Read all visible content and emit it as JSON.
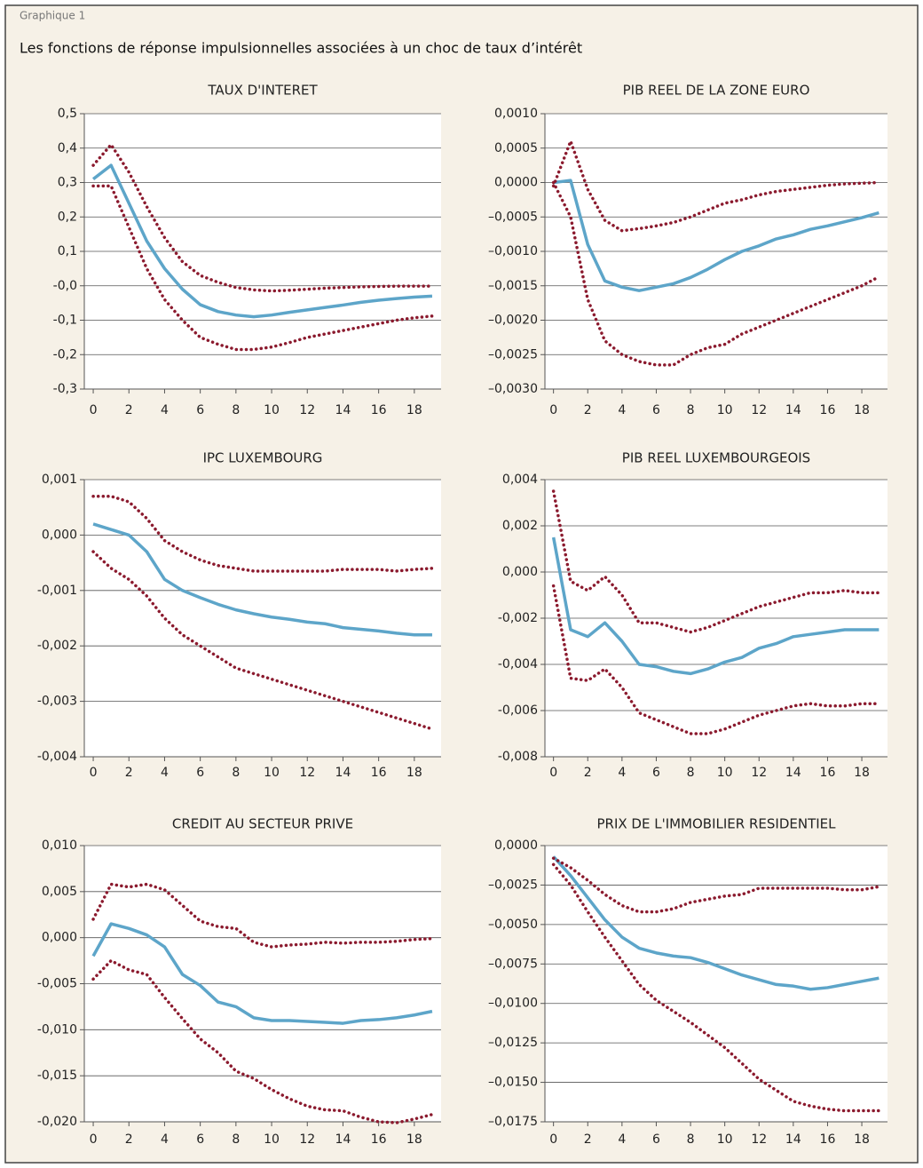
{
  "header": {
    "label": "Graphique 1",
    "title": "Les fonctions de réponse impulsionnelles associées à un choc de taux d’intérêt"
  },
  "chart_data": [
    {
      "type": "line",
      "title": "TAUX D'INTERET",
      "x": [
        0,
        1,
        2,
        3,
        4,
        5,
        6,
        7,
        8,
        9,
        10,
        11,
        12,
        13,
        14,
        15,
        16,
        17,
        18,
        19
      ],
      "xlim": [
        -0.5,
        19.5
      ],
      "xticks": [
        0,
        2,
        4,
        6,
        8,
        10,
        12,
        14,
        16,
        18
      ],
      "ylim": [
        -0.3,
        0.5
      ],
      "yticks": [
        {
          "value": 0.5,
          "label": "0,5"
        },
        {
          "value": 0.4,
          "label": "0,4"
        },
        {
          "value": 0.3,
          "label": "0,3"
        },
        {
          "value": 0.2,
          "label": "0,2"
        },
        {
          "value": 0.1,
          "label": "0,1"
        },
        {
          "value": 0,
          "label": "-0,0"
        },
        {
          "value": -0.1,
          "label": "-0,1"
        },
        {
          "value": -0.2,
          "label": "-0,2"
        },
        {
          "value": -0.3,
          "label": "-0,3"
        }
      ],
      "grid": true,
      "series": [
        {
          "color": "#5da5c9",
          "style": "solid",
          "values": [
            0.31,
            0.35,
            0.24,
            0.13,
            0.05,
            -0.01,
            -0.055,
            -0.075,
            -0.085,
            -0.09,
            -0.085,
            -0.077,
            -0.07,
            -0.063,
            -0.056,
            -0.048,
            -0.042,
            -0.037,
            -0.033,
            -0.03
          ]
        },
        {
          "color": "#8b1a2e",
          "style": "dotted",
          "values": [
            0.35,
            0.41,
            0.33,
            0.23,
            0.14,
            0.07,
            0.03,
            0.01,
            -0.005,
            -0.012,
            -0.015,
            -0.013,
            -0.01,
            -0.007,
            -0.005,
            -0.003,
            -0.002,
            -0.001,
            -0.001,
            -0.001
          ]
        },
        {
          "color": "#8b1a2e",
          "style": "dotted",
          "values": [
            0.29,
            0.29,
            0.17,
            0.05,
            -0.04,
            -0.1,
            -0.15,
            -0.17,
            -0.185,
            -0.185,
            -0.178,
            -0.165,
            -0.15,
            -0.14,
            -0.13,
            -0.12,
            -0.11,
            -0.1,
            -0.093,
            -0.088
          ]
        }
      ]
    },
    {
      "type": "line",
      "title": "PIB REEL DE LA ZONE EURO",
      "x": [
        0,
        1,
        2,
        3,
        4,
        5,
        6,
        7,
        8,
        9,
        10,
        11,
        12,
        13,
        14,
        15,
        16,
        17,
        18,
        19
      ],
      "xlim": [
        -0.5,
        19.5
      ],
      "xticks": [
        0,
        2,
        4,
        6,
        8,
        10,
        12,
        14,
        16,
        18
      ],
      "ylim": [
        -0.003,
        0.001
      ],
      "yticks": [
        {
          "value": 0.001,
          "label": "0,0010"
        },
        {
          "value": 0.0005,
          "label": "0,0005"
        },
        {
          "value": 0,
          "label": "0,0000"
        },
        {
          "value": -0.0005,
          "label": "–0,0005"
        },
        {
          "value": -0.001,
          "label": "–0,0010"
        },
        {
          "value": -0.0015,
          "label": "–0,0015"
        },
        {
          "value": -0.002,
          "label": "–0,0020"
        },
        {
          "value": -0.0025,
          "label": "–0,0025"
        },
        {
          "value": -0.003,
          "label": "–0,0030"
        }
      ],
      "grid": true,
      "series": [
        {
          "color": "#5da5c9",
          "style": "solid",
          "values": [
            0,
            3e-05,
            -0.0009,
            -0.00143,
            -0.00152,
            -0.00157,
            -0.00152,
            -0.00147,
            -0.00138,
            -0.00126,
            -0.00112,
            -0.001,
            -0.00092,
            -0.00082,
            -0.00076,
            -0.00068,
            -0.00063,
            -0.00057,
            -0.00051,
            -0.00044
          ]
        },
        {
          "color": "#8b1a2e",
          "style": "dotted",
          "values": [
            -5e-05,
            0.0006,
            -0.0001,
            -0.00055,
            -0.0007,
            -0.00067,
            -0.00063,
            -0.00058,
            -0.0005,
            -0.0004,
            -0.0003,
            -0.00025,
            -0.00018,
            -0.00013,
            -0.0001,
            -7e-05,
            -4e-05,
            -2e-05,
            -1e-05,
            0
          ]
        },
        {
          "color": "#8b1a2e",
          "style": "dotted",
          "values": [
            0,
            -0.0005,
            -0.0017,
            -0.0023,
            -0.0025,
            -0.0026,
            -0.00265,
            -0.00265,
            -0.0025,
            -0.0024,
            -0.00235,
            -0.0022,
            -0.0021,
            -0.002,
            -0.0019,
            -0.0018,
            -0.0017,
            -0.0016,
            -0.0015,
            -0.00137
          ]
        }
      ]
    },
    {
      "type": "line",
      "title": "IPC LUXEMBOURG",
      "x": [
        0,
        1,
        2,
        3,
        4,
        5,
        6,
        7,
        8,
        9,
        10,
        11,
        12,
        13,
        14,
        15,
        16,
        17,
        18,
        19
      ],
      "xlim": [
        -0.5,
        19.5
      ],
      "xticks": [
        0,
        2,
        4,
        6,
        8,
        10,
        12,
        14,
        16,
        18
      ],
      "ylim": [
        -0.004,
        0.001
      ],
      "yticks": [
        {
          "value": 0.001,
          "label": "0,001"
        },
        {
          "value": 0,
          "label": "0,000"
        },
        {
          "value": -0.001,
          "label": "-0,001"
        },
        {
          "value": -0.002,
          "label": "-0,002"
        },
        {
          "value": -0.003,
          "label": "-0,003"
        },
        {
          "value": -0.004,
          "label": "-0,004"
        }
      ],
      "grid": true,
      "series": [
        {
          "color": "#5da5c9",
          "style": "solid",
          "values": [
            0.0002,
            0.0001,
            0,
            -0.0003,
            -0.0008,
            -0.001,
            -0.00113,
            -0.00125,
            -0.00135,
            -0.00142,
            -0.00148,
            -0.00152,
            -0.00157,
            -0.0016,
            -0.00167,
            -0.0017,
            -0.00173,
            -0.00177,
            -0.0018,
            -0.0018
          ]
        },
        {
          "color": "#8b1a2e",
          "style": "dotted",
          "values": [
            0.0007,
            0.0007,
            0.0006,
            0.0003,
            -0.0001,
            -0.0003,
            -0.00045,
            -0.00055,
            -0.0006,
            -0.00065,
            -0.00065,
            -0.00065,
            -0.00065,
            -0.00065,
            -0.00062,
            -0.00062,
            -0.00062,
            -0.00065,
            -0.00062,
            -0.0006
          ]
        },
        {
          "color": "#8b1a2e",
          "style": "dotted",
          "values": [
            -0.0003,
            -0.0006,
            -0.0008,
            -0.0011,
            -0.0015,
            -0.0018,
            -0.002,
            -0.0022,
            -0.0024,
            -0.0025,
            -0.0026,
            -0.0027,
            -0.0028,
            -0.0029,
            -0.003,
            -0.0031,
            -0.0032,
            -0.0033,
            -0.0034,
            -0.0035
          ]
        }
      ]
    },
    {
      "type": "line",
      "title": "PIB REEL LUXEMBOURGEOIS",
      "x": [
        0,
        1,
        2,
        3,
        4,
        5,
        6,
        7,
        8,
        9,
        10,
        11,
        12,
        13,
        14,
        15,
        16,
        17,
        18,
        19
      ],
      "xlim": [
        -0.5,
        19.5
      ],
      "xticks": [
        0,
        2,
        4,
        6,
        8,
        10,
        12,
        14,
        16,
        18
      ],
      "ylim": [
        -0.008,
        0.004
      ],
      "yticks": [
        {
          "value": 0.004,
          "label": "0,004"
        },
        {
          "value": 0.002,
          "label": "0,002"
        },
        {
          "value": 0,
          "label": "0,000"
        },
        {
          "value": -0.002,
          "label": "-0,002"
        },
        {
          "value": -0.004,
          "label": "-0,004"
        },
        {
          "value": -0.006,
          "label": "-0,006"
        },
        {
          "value": -0.008,
          "label": "-0,008"
        }
      ],
      "grid": true,
      "series": [
        {
          "color": "#5da5c9",
          "style": "solid",
          "values": [
            0.0015,
            -0.0025,
            -0.0028,
            -0.0022,
            -0.003,
            -0.004,
            -0.0041,
            -0.0043,
            -0.0044,
            -0.0042,
            -0.0039,
            -0.0037,
            -0.0033,
            -0.0031,
            -0.0028,
            -0.0027,
            -0.0026,
            -0.0025,
            -0.0025,
            -0.0025
          ]
        },
        {
          "color": "#8b1a2e",
          "style": "dotted",
          "values": [
            0.0035,
            -0.0004,
            -0.0008,
            -0.0002,
            -0.001,
            -0.0022,
            -0.0022,
            -0.0024,
            -0.0026,
            -0.0024,
            -0.0021,
            -0.0018,
            -0.0015,
            -0.0013,
            -0.0011,
            -0.0009,
            -0.0009,
            -0.0008,
            -0.0009,
            -0.0009
          ]
        },
        {
          "color": "#8b1a2e",
          "style": "dotted",
          "values": [
            -0.0006,
            -0.0046,
            -0.0047,
            -0.0042,
            -0.005,
            -0.0061,
            -0.0064,
            -0.0067,
            -0.007,
            -0.007,
            -0.0068,
            -0.0065,
            -0.0062,
            -0.006,
            -0.0058,
            -0.0057,
            -0.0058,
            -0.0058,
            -0.0057,
            -0.0057
          ]
        }
      ]
    },
    {
      "type": "line",
      "title": "CREDIT AU SECTEUR PRIVE",
      "x": [
        0,
        1,
        2,
        3,
        4,
        5,
        6,
        7,
        8,
        9,
        10,
        11,
        12,
        13,
        14,
        15,
        16,
        17,
        18,
        19
      ],
      "xlim": [
        -0.5,
        19.5
      ],
      "xticks": [
        0,
        2,
        4,
        6,
        8,
        10,
        12,
        14,
        16,
        18
      ],
      "ylim": [
        -0.02,
        0.01
      ],
      "yticks": [
        {
          "value": 0.01,
          "label": "0,010"
        },
        {
          "value": 0.005,
          "label": "0,005"
        },
        {
          "value": 0,
          "label": "0,000"
        },
        {
          "value": -0.005,
          "label": "-0,005"
        },
        {
          "value": -0.01,
          "label": "-0,010"
        },
        {
          "value": -0.015,
          "label": "-0,015"
        },
        {
          "value": -0.02,
          "label": "-0,020"
        }
      ],
      "grid": true,
      "series": [
        {
          "color": "#5da5c9",
          "style": "solid",
          "values": [
            -0.002,
            0.0015,
            0.001,
            0.0003,
            -0.001,
            -0.004,
            -0.0052,
            -0.007,
            -0.0075,
            -0.0087,
            -0.009,
            -0.009,
            -0.0091,
            -0.0092,
            -0.0093,
            -0.009,
            -0.0089,
            -0.0087,
            -0.0084,
            -0.008
          ]
        },
        {
          "color": "#8b1a2e",
          "style": "dotted",
          "values": [
            0.002,
            0.0058,
            0.0055,
            0.0058,
            0.0052,
            0.0035,
            0.0018,
            0.0012,
            0.001,
            -0.0005,
            -0.001,
            -0.0008,
            -0.0007,
            -0.0005,
            -0.0006,
            -0.0005,
            -0.0005,
            -0.0004,
            -0.0002,
            -0.0001
          ]
        },
        {
          "color": "#8b1a2e",
          "style": "dotted",
          "values": [
            -0.0045,
            -0.0025,
            -0.0035,
            -0.004,
            -0.0065,
            -0.0088,
            -0.011,
            -0.0125,
            -0.0145,
            -0.0153,
            -0.0165,
            -0.0175,
            -0.0183,
            -0.0187,
            -0.0188,
            -0.0195,
            -0.02,
            -0.0201,
            -0.0197,
            -0.0192
          ]
        }
      ]
    },
    {
      "type": "line",
      "title": "PRIX DE L'IMMOBILIER RESIDENTIEL",
      "x": [
        0,
        1,
        2,
        3,
        4,
        5,
        6,
        7,
        8,
        9,
        10,
        11,
        12,
        13,
        14,
        15,
        16,
        17,
        18,
        19
      ],
      "xlim": [
        -0.5,
        19.5
      ],
      "xticks": [
        0,
        2,
        4,
        6,
        8,
        10,
        12,
        14,
        16,
        18
      ],
      "ylim": [
        -0.0175,
        0
      ],
      "yticks": [
        {
          "value": 0,
          "label": "0,0000"
        },
        {
          "value": -0.0025,
          "label": "–0,0025"
        },
        {
          "value": -0.005,
          "label": "–0,0050"
        },
        {
          "value": -0.0075,
          "label": "–0,0075"
        },
        {
          "value": -0.01,
          "label": "–0,0100"
        },
        {
          "value": -0.0125,
          "label": "–0,0125"
        },
        {
          "value": -0.015,
          "label": "–0,0150"
        },
        {
          "value": -0.0175,
          "label": "–0,0175"
        }
      ],
      "grid": true,
      "series": [
        {
          "color": "#5da5c9",
          "style": "solid",
          "values": [
            -0.0007,
            -0.0019,
            -0.0033,
            -0.0047,
            -0.0058,
            -0.0065,
            -0.0068,
            -0.007,
            -0.0071,
            -0.0074,
            -0.0078,
            -0.0082,
            -0.0085,
            -0.0088,
            -0.0089,
            -0.0091,
            -0.009,
            -0.0088,
            -0.0086,
            -0.0084
          ]
        },
        {
          "color": "#8b1a2e",
          "style": "dotted",
          "values": [
            -0.0008,
            -0.0014,
            -0.0022,
            -0.0031,
            -0.0038,
            -0.0042,
            -0.0042,
            -0.004,
            -0.0036,
            -0.0034,
            -0.0032,
            -0.0031,
            -0.0027,
            -0.0027,
            -0.0027,
            -0.0027,
            -0.0027,
            -0.0028,
            -0.0028,
            -0.0026
          ]
        },
        {
          "color": "#8b1a2e",
          "style": "dotted",
          "values": [
            -0.0012,
            -0.0025,
            -0.0042,
            -0.0058,
            -0.0073,
            -0.0088,
            -0.0098,
            -0.0105,
            -0.0112,
            -0.012,
            -0.0128,
            -0.0138,
            -0.0148,
            -0.0155,
            -0.0162,
            -0.0165,
            -0.0167,
            -0.0168,
            -0.0168,
            -0.0168
          ]
        }
      ]
    }
  ]
}
